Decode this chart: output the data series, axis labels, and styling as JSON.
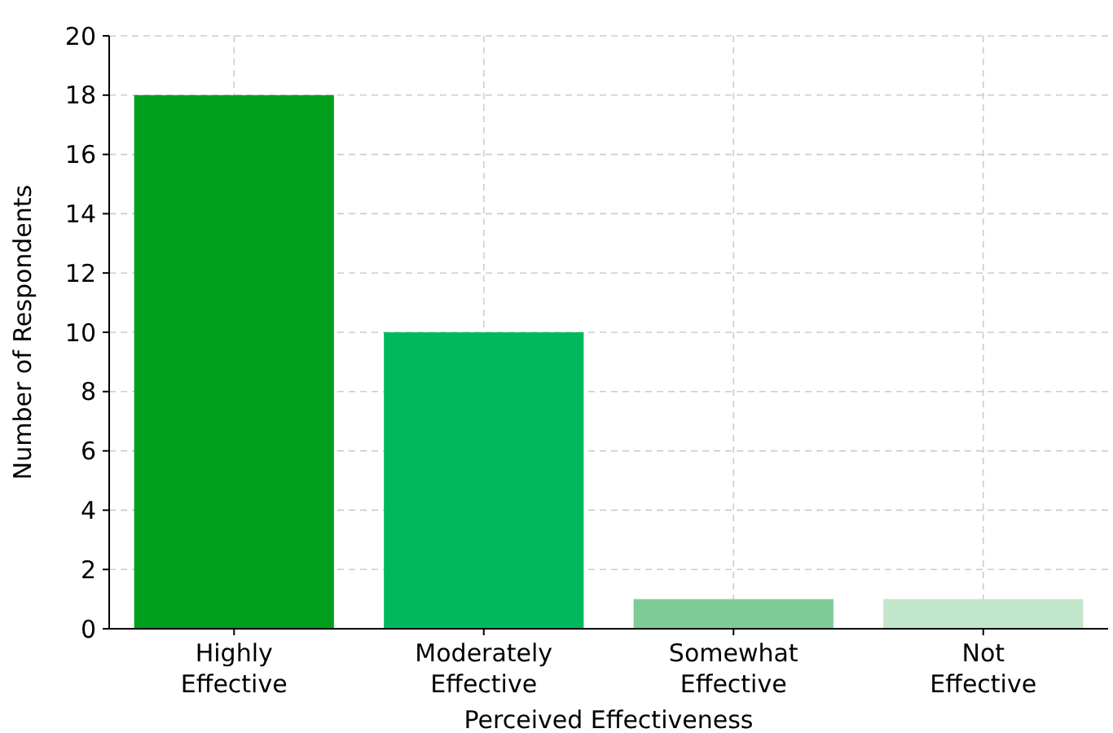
{
  "chart_data": {
    "type": "bar",
    "xlabel": "Perceived Effectiveness",
    "ylabel": "Number of Respondents",
    "categories": [
      "Highly\nEffective",
      "Moderately\nEffective",
      "Somewhat\nEffective",
      "Not\nEffective"
    ],
    "values": [
      18,
      10,
      1,
      1
    ],
    "colors": [
      "#00a01c",
      "#00b95c",
      "#7fcb95",
      "#c2e6c9"
    ],
    "ylim": [
      0,
      20
    ],
    "yticks": [
      0,
      2,
      4,
      6,
      8,
      10,
      12,
      14,
      16,
      18,
      20
    ],
    "grid": true
  }
}
